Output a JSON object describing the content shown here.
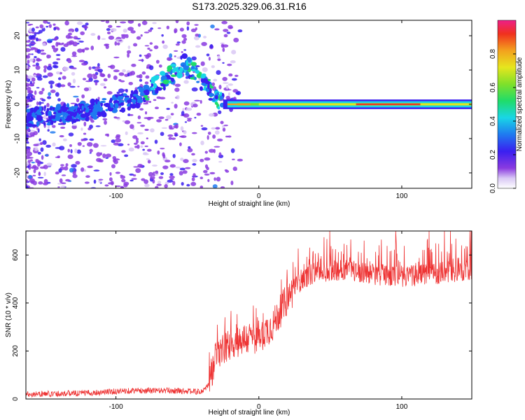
{
  "title": "S173.2025.329.06.31.R16",
  "chart_data": [
    {
      "type": "heatmap",
      "name": "spectrogram",
      "xlabel": "Height of straight line (km)",
      "ylabel": "Frequency (Hz)",
      "xlim": [
        -163,
        149
      ],
      "ylim": [
        -24.5,
        24.5
      ],
      "xticks": [
        -100,
        0,
        100
      ],
      "yticks": [
        -20,
        -10,
        0,
        10,
        20
      ],
      "colorbar": {
        "label": "Normalized spectral amplitude",
        "range": [
          0.0,
          1.0
        ],
        "ticks": [
          0.0,
          0.2,
          0.4,
          0.6,
          0.8
        ]
      },
      "tone_track": [
        {
          "x": -160,
          "f": -4
        },
        {
          "x": -140,
          "f": -3
        },
        {
          "x": -120,
          "f": -2
        },
        {
          "x": -100,
          "f": 0
        },
        {
          "x": -85,
          "f": 2
        },
        {
          "x": -70,
          "f": 6
        },
        {
          "x": -60,
          "f": 9
        },
        {
          "x": -52,
          "f": 12
        },
        {
          "x": -45,
          "f": 9
        },
        {
          "x": -38,
          "f": 6
        },
        {
          "x": -30,
          "f": 2
        },
        {
          "x": -25,
          "f": 0
        },
        {
          "x": 0,
          "f": 0
        },
        {
          "x": 50,
          "f": 0
        },
        {
          "x": 100,
          "f": 0
        },
        {
          "x": 149,
          "f": 0
        }
      ]
    },
    {
      "type": "line",
      "name": "snr",
      "xlabel": "Height of straight line (km)",
      "ylabel": "SNR (10 * v/v)",
      "xlim": [
        -163,
        149
      ],
      "ylim": [
        0,
        700
      ],
      "xticks": [
        -100,
        0,
        100
      ],
      "yticks": [
        0,
        200,
        400,
        600
      ],
      "color": "#ee3333",
      "envelope": [
        {
          "x": -163,
          "snr": 20
        },
        {
          "x": -120,
          "snr": 25
        },
        {
          "x": -90,
          "snr": 35
        },
        {
          "x": -60,
          "snr": 35
        },
        {
          "x": -40,
          "snr": 30
        },
        {
          "x": -35,
          "snr": 60
        },
        {
          "x": -30,
          "snr": 180
        },
        {
          "x": -20,
          "snr": 230
        },
        {
          "x": -10,
          "snr": 250
        },
        {
          "x": 0,
          "snr": 260
        },
        {
          "x": 10,
          "snr": 310
        },
        {
          "x": 20,
          "snr": 420
        },
        {
          "x": 30,
          "snr": 500
        },
        {
          "x": 40,
          "snr": 530
        },
        {
          "x": 60,
          "snr": 540
        },
        {
          "x": 80,
          "snr": 520
        },
        {
          "x": 100,
          "snr": 510
        },
        {
          "x": 120,
          "snr": 520
        },
        {
          "x": 149,
          "snr": 540
        }
      ]
    }
  ]
}
